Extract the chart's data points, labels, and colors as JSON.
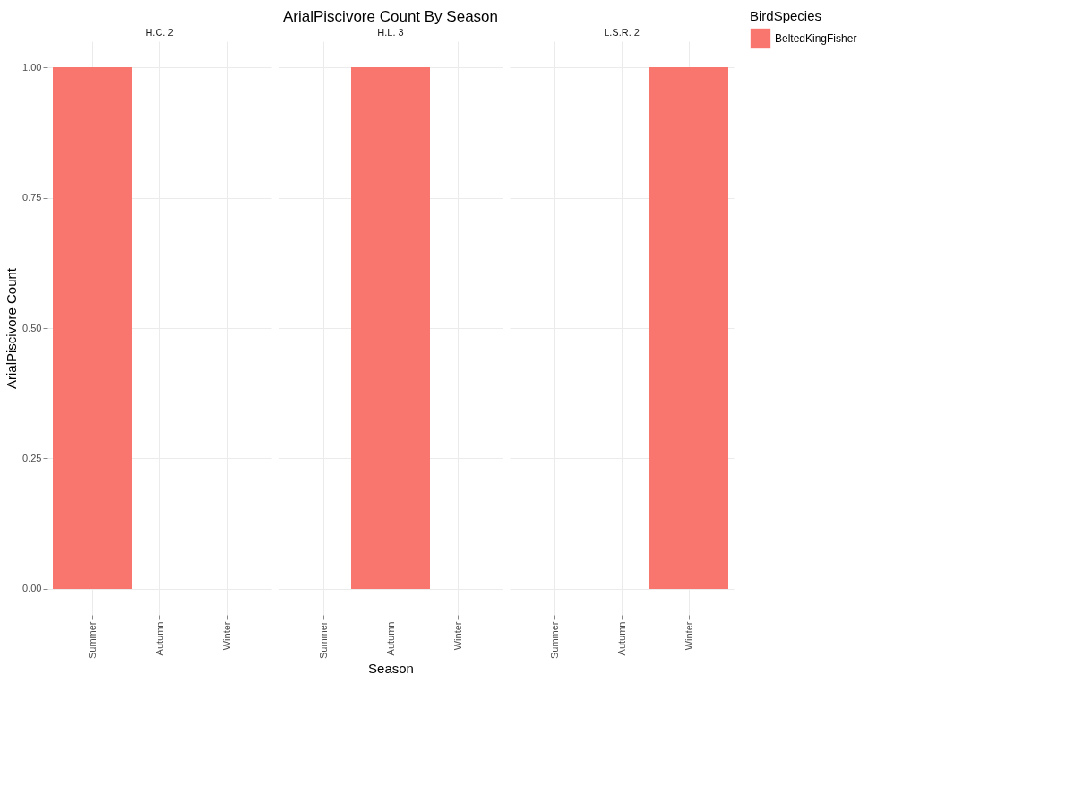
{
  "chart_data": [
    {
      "type": "bar",
      "subtitle": "H.C. 2",
      "ylabel": "ArialPiscivore Count",
      "categories": [
        "Summer",
        "Autumn",
        "Winter"
      ],
      "series": [
        {
          "color": "#f8766d",
          "values": [
            1,
            null,
            null
          ]
        }
      ],
      "ylim": [
        -0.05,
        1.05
      ],
      "yticks": [
        {
          "value": 0,
          "label": "0.00"
        },
        {
          "value": 0.25,
          "label": "0.25"
        },
        {
          "value": 0.5,
          "label": "0.50"
        },
        {
          "value": 0.75,
          "label": "0.75"
        },
        {
          "value": 1,
          "label": "1.00"
        }
      ],
      "grid": true
    },
    {
      "type": "bar",
      "title": "ArialPiscivore Count By Season",
      "subtitle": "H.L. 3",
      "xlabel": "Season",
      "categories": [
        "Summer",
        "Autumn",
        "Winter"
      ],
      "series": [
        {
          "color": "#f8766d",
          "values": [
            null,
            1,
            null
          ]
        }
      ],
      "ylim": [
        -0.05,
        1.05
      ],
      "yticks": [
        {
          "value": 0,
          "label": null
        },
        {
          "value": 0.25,
          "label": null
        },
        {
          "value": 0.5,
          "label": null
        },
        {
          "value": 0.75,
          "label": null
        },
        {
          "value": 1,
          "label": null
        }
      ],
      "grid": true,
      "tick_labels": "x"
    },
    {
      "type": "bar",
      "subtitle": "L.S.R. 2",
      "legend_title": "BirdSpecies",
      "legend": "right",
      "categories": [
        "Summer",
        "Autumn",
        "Winter"
      ],
      "series": [
        {
          "name": "BeltedKingFisher",
          "color": "#f8766d",
          "values": [
            null,
            null,
            1
          ]
        }
      ],
      "ylim": [
        -0.05,
        1.05
      ],
      "yticks": [
        {
          "value": 0,
          "label": null
        },
        {
          "value": 0.25,
          "label": null
        },
        {
          "value": 0.5,
          "label": null
        },
        {
          "value": 0.75,
          "label": null
        },
        {
          "value": 1,
          "label": null
        }
      ],
      "grid": true,
      "tick_labels": "x"
    }
  ]
}
